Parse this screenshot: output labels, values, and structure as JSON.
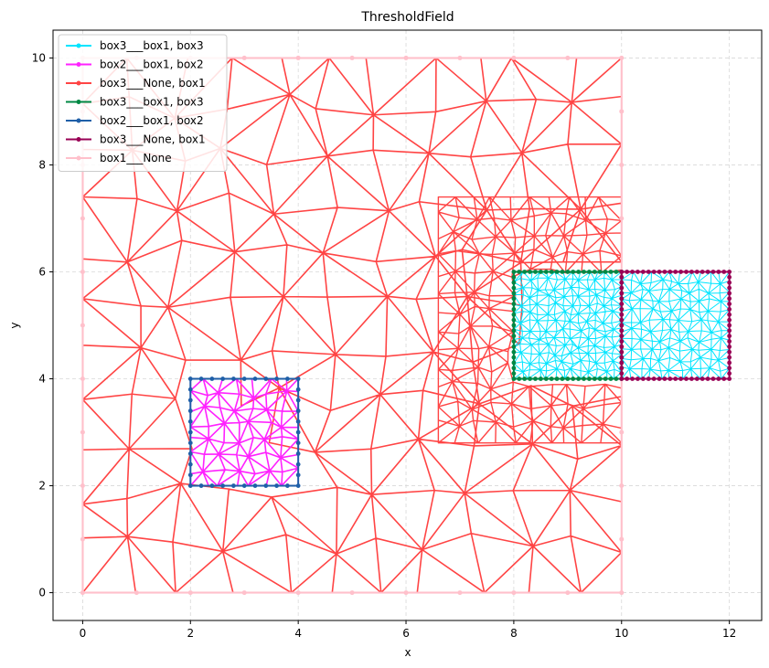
{
  "chart_data": {
    "type": "line",
    "title": "ThresholdField",
    "xlabel": "x",
    "ylabel": "y",
    "xlim": [
      -0.55,
      12.6
    ],
    "ylim": [
      -0.52,
      10.52
    ],
    "xticks": [
      "0",
      "2",
      "4",
      "6",
      "8",
      "10",
      "12"
    ],
    "yticks": [
      "0",
      "2",
      "4",
      "6",
      "8",
      "10"
    ],
    "grid": true,
    "legend_position": "top-left",
    "series": [
      {
        "name": "box3___box1, box3",
        "color": "#00e5ff",
        "region": [
          8,
          4,
          12,
          6
        ],
        "description_points": "fine triangular mesh"
      },
      {
        "name": "box2___box1, box2",
        "color": "#ff22ff",
        "region": [
          2,
          2,
          4,
          4
        ]
      },
      {
        "name": "box3___None, box1",
        "color": "#ff4444",
        "region": [
          0,
          0,
          10,
          10
        ]
      },
      {
        "name": "box3___box1, box3",
        "color": "#008844",
        "boundary": [
          8,
          4,
          10,
          6
        ]
      },
      {
        "name": "box2___box1, box2",
        "color": "#1f5fa8",
        "boundary": [
          2,
          2,
          4,
          4
        ]
      },
      {
        "name": "box3___None, box1",
        "color": "#990055",
        "boundary": [
          10,
          4,
          12,
          6
        ]
      },
      {
        "name": "box1___None",
        "color": "#ffc0cb",
        "boundary": [
          0,
          0,
          10,
          10
        ]
      }
    ]
  }
}
